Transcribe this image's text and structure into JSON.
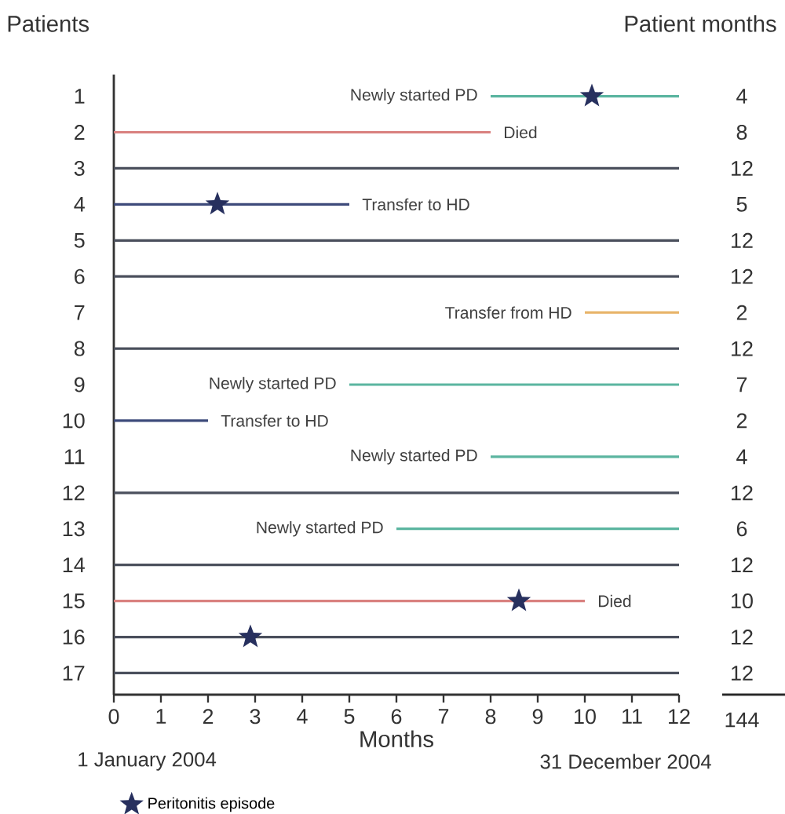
{
  "chart_data": {
    "type": "bar",
    "orientation": "horizontal",
    "ylabel": "Patients",
    "y2label": "Patient months",
    "xlabel": "Months",
    "categories": [
      "1",
      "2",
      "3",
      "4",
      "5",
      "6",
      "7",
      "8",
      "9",
      "10",
      "11",
      "12",
      "13",
      "14",
      "15",
      "16",
      "17"
    ],
    "xlim": [
      0,
      12
    ],
    "xticks": [
      0,
      1,
      2,
      3,
      4,
      5,
      6,
      7,
      8,
      9,
      10,
      11,
      12
    ],
    "legend": "bottom left",
    "series": [
      {
        "base": [
          8,
          0,
          0,
          0,
          0,
          0,
          10,
          0,
          5,
          0,
          8,
          0,
          6,
          0,
          0,
          0,
          0
        ],
        "values": [
          4,
          8,
          12,
          5,
          12,
          12,
          2,
          12,
          7,
          2,
          4,
          12,
          6,
          12,
          10,
          12,
          12
        ],
        "colors": [
          "#5bb5a0",
          "#d9817f",
          "#4a4f5c",
          "#3d4a7a",
          "#4a4f5c",
          "#4a4f5c",
          "#e8b56b",
          "#4a4f5c",
          "#5bb5a0",
          "#3d4a7a",
          "#5bb5a0",
          "#4a4f5c",
          "#5bb5a0",
          "#4a4f5c",
          "#d9817f",
          "#4a4f5c",
          "#4a4f5c"
        ],
        "value_labels": [
          "4",
          "8",
          "12",
          "5",
          "12",
          "12",
          "2",
          "12",
          "7",
          "2",
          "4",
          "12",
          "6",
          "12",
          "10",
          "12",
          "12"
        ]
      },
      {
        "type": "scatter",
        "name": "Peritonitis episode",
        "x": [
          "1",
          "4",
          "15",
          "16"
        ],
        "values": [
          10.15,
          2.2,
          8.6,
          2.9
        ],
        "color": "#27305e",
        "marker": "star"
      }
    ],
    "annotations": [
      {
        "text": "Newly started PD",
        "x": 8,
        "y": "1"
      },
      {
        "text": "Died",
        "x": 8,
        "y": "2"
      },
      {
        "text": "Transfer to HD",
        "x": 5,
        "y": "4"
      },
      {
        "text": "Transfer from HD",
        "x": 10,
        "y": "7"
      },
      {
        "text": "Newly started PD",
        "x": 5,
        "y": "9"
      },
      {
        "text": "Transfer to HD",
        "x": 2,
        "y": "10"
      },
      {
        "text": "Newly started PD",
        "x": 8,
        "y": "11"
      },
      {
        "text": "Newly started PD",
        "x": 6,
        "y": "13"
      },
      {
        "text": "Died",
        "x": 10,
        "y": "15"
      },
      "1 January 2004",
      "31 December 2004",
      "144"
    ]
  }
}
